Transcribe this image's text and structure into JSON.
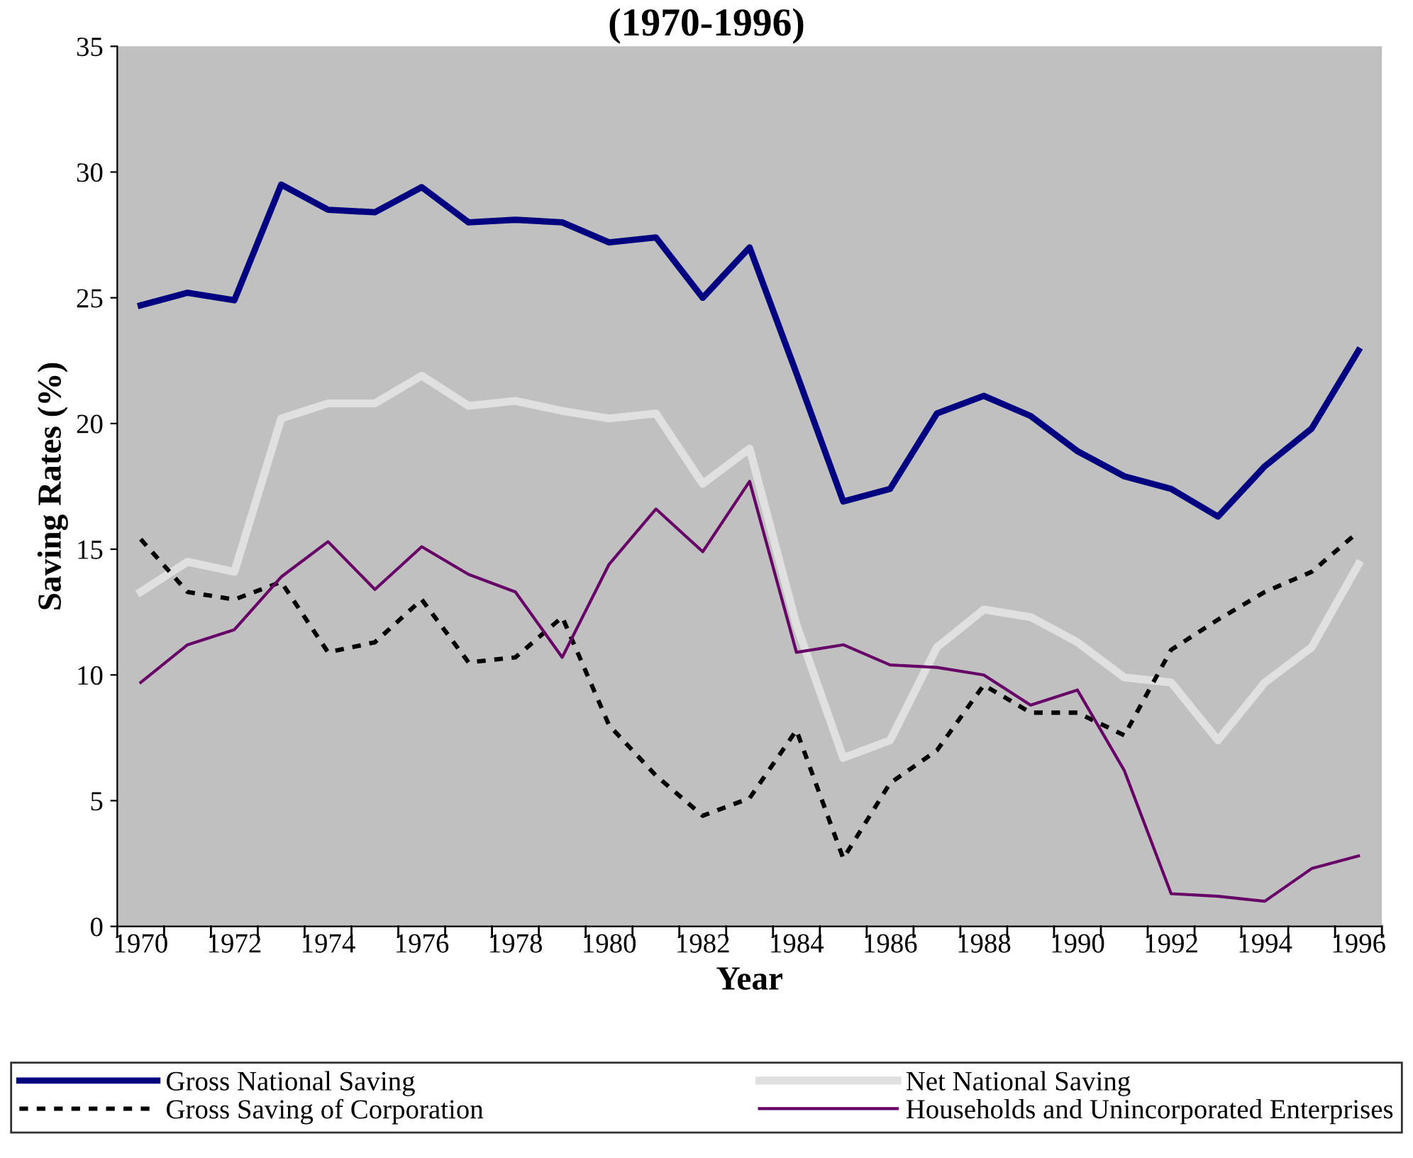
{
  "chart_data": {
    "type": "line",
    "title": "(1970-1996)",
    "xlabel": "Year",
    "ylabel": "Saving Rates (%)",
    "categories": [
      "1970",
      null,
      "1972",
      null,
      "1974",
      null,
      "1976",
      null,
      "1978",
      null,
      "1980",
      null,
      "1982",
      null,
      "1984",
      null,
      "1986",
      null,
      "1988",
      null,
      "1990",
      null,
      "1992",
      null,
      "1994",
      null,
      "1996"
    ],
    "ylim": [
      0,
      35
    ],
    "yticks": [
      0,
      5,
      10,
      15,
      20,
      25,
      30,
      35
    ],
    "grid": false,
    "legend": "bottom",
    "marker": "none",
    "series": [
      {
        "name": "Gross National Saving",
        "color": "#000080",
        "line_style": "solid",
        "values": [
          24.7,
          25.2,
          24.9,
          29.5,
          28.5,
          28.4,
          29.4,
          28.0,
          28.1,
          28.0,
          27.2,
          27.4,
          25.0,
          27.0,
          22.0,
          16.9,
          17.4,
          20.4,
          21.1,
          20.3,
          18.9,
          17.9,
          17.4,
          16.3,
          18.3,
          19.8,
          22.9
        ]
      },
      {
        "name": "Net National Saving",
        "color": "#e0e0e0",
        "line_style": "solid",
        "values": [
          13.3,
          14.5,
          14.1,
          20.2,
          20.8,
          20.8,
          21.9,
          20.7,
          20.9,
          20.5,
          20.2,
          20.4,
          17.6,
          19.0,
          12.0,
          6.7,
          7.4,
          11.1,
          12.6,
          12.3,
          11.3,
          9.9,
          9.7,
          7.4,
          9.7,
          11.1,
          14.4
        ]
      },
      {
        "name": "Gross Saving of Corporation",
        "color": "#000000",
        "line_style": "dotted",
        "values": [
          15.4,
          13.3,
          13.0,
          13.7,
          10.9,
          11.3,
          13.0,
          10.5,
          10.7,
          12.3,
          8.0,
          6.0,
          4.4,
          5.1,
          7.8,
          2.7,
          5.7,
          7.0,
          9.6,
          8.5,
          8.5,
          7.6,
          11.0,
          12.2,
          13.3,
          14.1,
          15.7
        ]
      },
      {
        "name": "Households and Unincorporated Enterprises",
        "color": "#660066",
        "line_style": "solid",
        "values": [
          9.7,
          11.2,
          11.8,
          13.9,
          15.3,
          13.4,
          15.1,
          14.0,
          13.3,
          10.7,
          14.4,
          16.6,
          14.9,
          17.7,
          10.9,
          11.2,
          10.4,
          10.3,
          10.0,
          8.8,
          9.4,
          6.2,
          1.3,
          1.2,
          1.0,
          2.3,
          2.8
        ]
      }
    ]
  }
}
